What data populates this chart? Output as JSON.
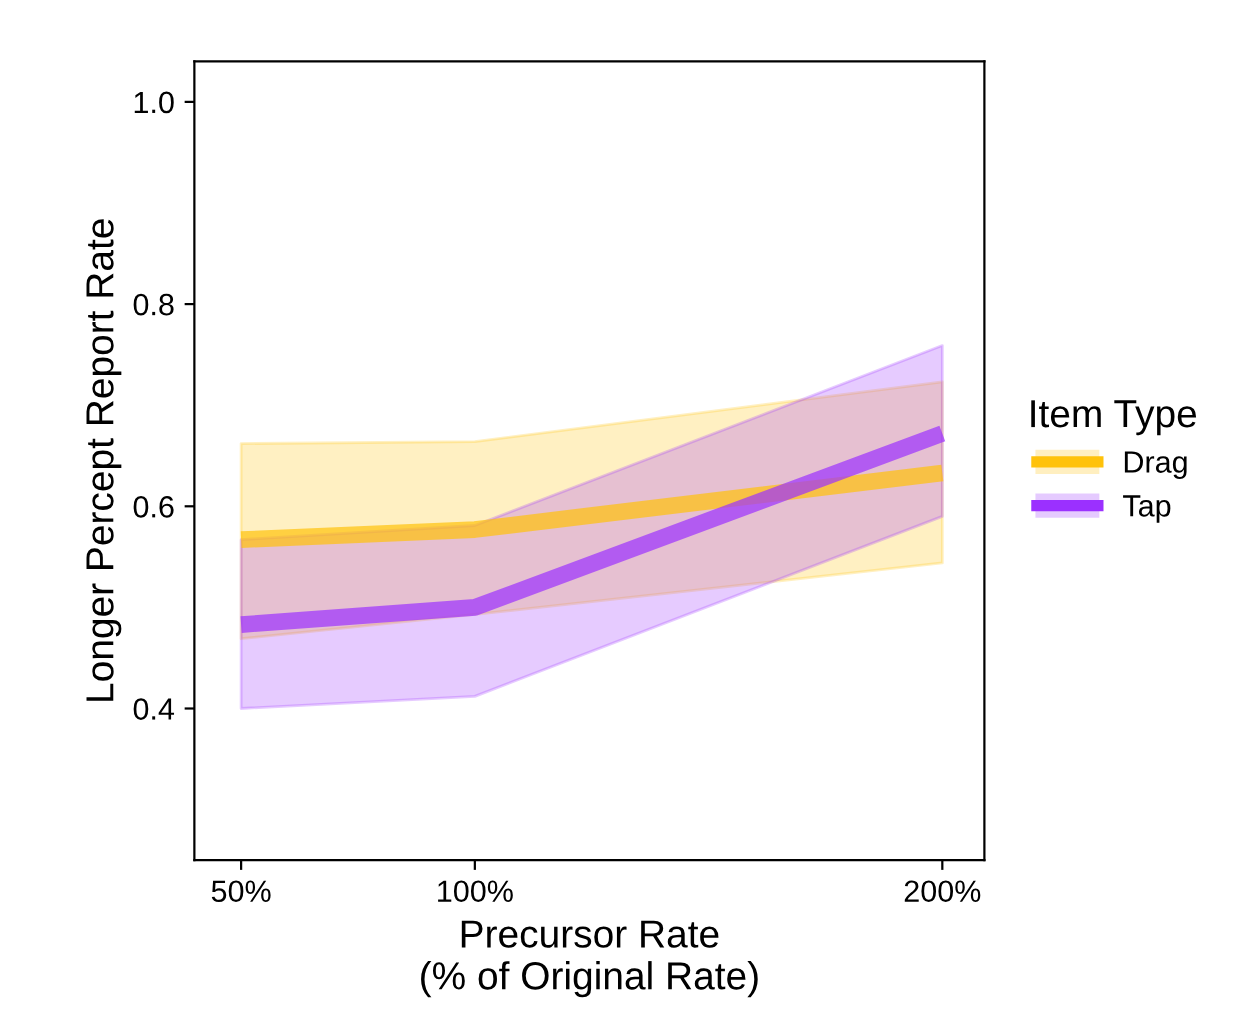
{
  "chart_data": {
    "type": "line",
    "xlabel": "Precursor Rate\n(% of Original Rate)",
    "ylabel": "Longer Percept Report Rate",
    "legend_title": "Item Type",
    "legend": "right",
    "grid": false,
    "marker": "none",
    "line_style": "solid",
    "x": [
      50,
      100,
      200
    ],
    "xlim": [
      40,
      209
    ],
    "xticks": [
      {
        "value": 50,
        "label": "50%"
      },
      {
        "value": 100,
        "label": "100%"
      },
      {
        "value": 200,
        "label": "200%"
      }
    ],
    "ylim": [
      0.25,
      1.04
    ],
    "yticks": [
      {
        "value": 0.4,
        "label": "0.4"
      },
      {
        "value": 0.6,
        "label": "0.6"
      },
      {
        "value": 0.8,
        "label": "0.8"
      },
      {
        "value": 1.0,
        "label": "1.0"
      }
    ],
    "series": [
      {
        "name": "Drag",
        "color": "#ffc20a",
        "values": [
          0.567,
          0.577,
          0.633
        ],
        "lower": [
          0.469,
          0.493,
          0.544
        ],
        "upper": [
          0.662,
          0.664,
          0.723
        ]
      },
      {
        "name": "Tap",
        "color": "#9b30ff",
        "values": [
          0.483,
          0.5,
          0.672
        ],
        "lower": [
          0.4,
          0.412,
          0.59
        ],
        "upper": [
          0.567,
          0.581,
          0.759
        ]
      }
    ]
  }
}
